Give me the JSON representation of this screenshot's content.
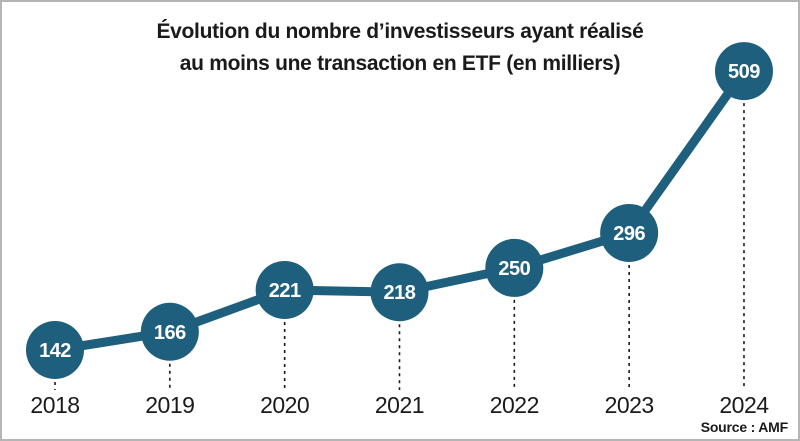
{
  "title": {
    "line1": "Évolution du nombre d’investisseurs ayant réalisé",
    "line2": "au moins une transaction en ETF (en milliers)"
  },
  "source": "Source : AMF",
  "colors": {
    "accent": "#1e5f7e",
    "text": "#1a1a1a",
    "value_label": "#ffffff",
    "dashed_guide": "#1a1a1a",
    "border": "#b5b5b5",
    "background": "#ffffff"
  },
  "chart_data": {
    "type": "line",
    "categories": [
      "2018",
      "2019",
      "2020",
      "2021",
      "2022",
      "2023",
      "2024"
    ],
    "values": [
      142,
      166,
      221,
      218,
      250,
      296,
      509
    ],
    "title": "Évolution du nombre d’investisseurs ayant réalisé au moins une transaction en ETF (en milliers)",
    "xlabel": "",
    "ylabel": "",
    "unit": "milliers",
    "legend_position": "none",
    "grid": false,
    "point_labels_visible": true,
    "source_note": "Source : AMF"
  }
}
